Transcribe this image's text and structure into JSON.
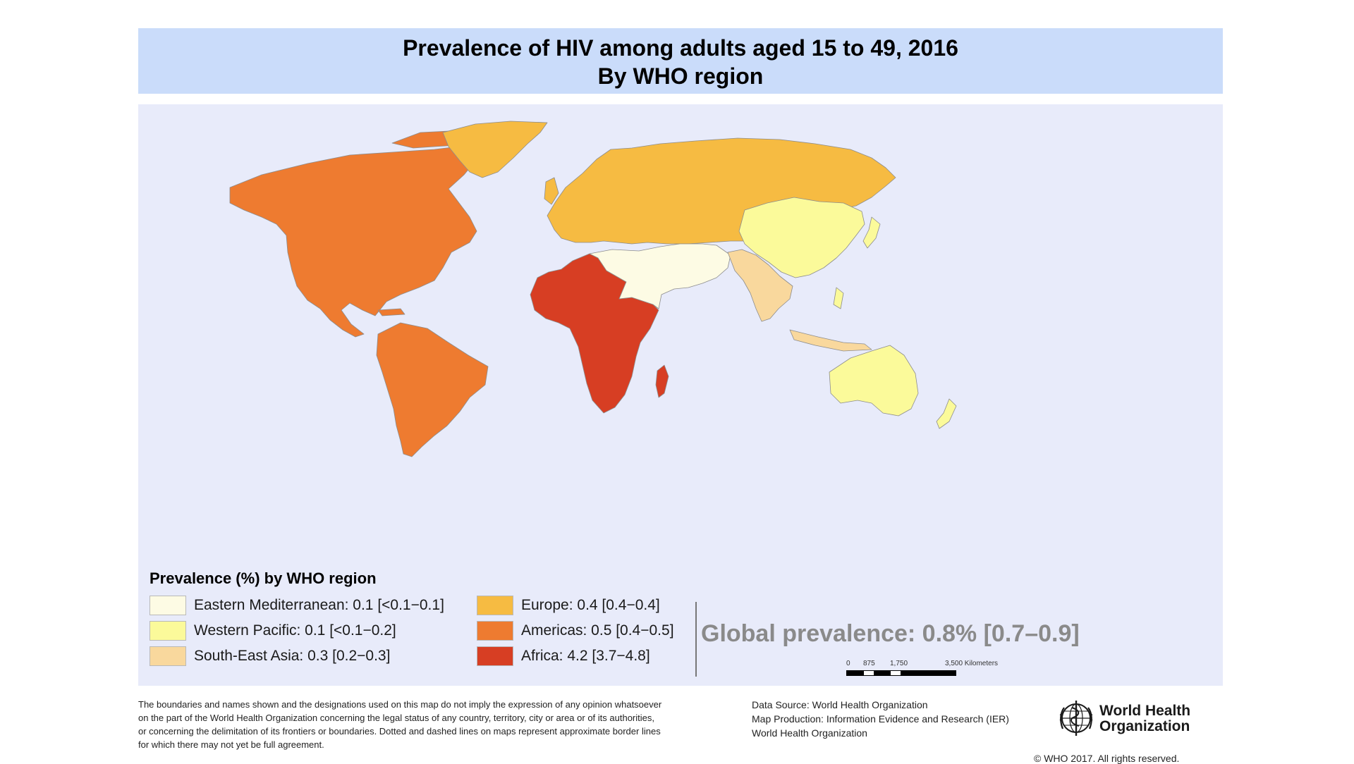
{
  "title": {
    "line1": "Prevalence of HIV among adults aged 15 to 49, 2016",
    "line2": "By WHO region"
  },
  "legend": {
    "title": "Prevalence (%) by WHO region",
    "items": [
      {
        "label": "Eastern Mediterranean: 0.1 [<0.1−0.1]",
        "color": "#fdfbe4"
      },
      {
        "label": "Western Pacific: 0.1 [<0.1−0.2]",
        "color": "#fbfa9a"
      },
      {
        "label": "South-East Asia: 0.3 [0.2−0.3]",
        "color": "#f9d89d"
      },
      {
        "label": "Europe: 0.4 [0.4−0.4]",
        "color": "#f6bb42"
      },
      {
        "label": "Americas: 0.5 [0.4−0.5]",
        "color": "#ee7b30"
      },
      {
        "label": "Africa: 4.2 [3.7−4.8]",
        "color": "#d73e23"
      }
    ]
  },
  "global_prevalence": "Global prevalence: 0.8% [0.7–0.9]",
  "scale": {
    "labels": [
      "0",
      "875",
      "1,750",
      "3,500 Kilometers"
    ]
  },
  "footer": {
    "disclaimer": [
      "The boundaries and names shown and the designations used on this map do not imply the expression of any opinion whatsoever",
      "on the part of the World Health Organization concerning the legal status of any country, territory, city or area or of its authorities,",
      "or concerning the delimitation of its frontiers or boundaries. Dotted and dashed lines on maps represent approximate border lines",
      "for which there may not yet be full agreement."
    ],
    "source": [
      "Data Source: World Health Organization",
      "Map Production: Information Evidence and Research (IER)",
      "World Health Organization"
    ],
    "org_name_line1": "World Health",
    "org_name_line2": "Organization",
    "copyright": "© WHO 2017. All rights reserved."
  },
  "colors": {
    "title_band": "#cadcfa",
    "ocean": "#e8ebfa",
    "eastern_mediterranean": "#fdfbe4",
    "western_pacific": "#fbfa9a",
    "south_east_asia": "#f9d89d",
    "europe": "#f6bb42",
    "americas": "#ee7b30",
    "africa": "#d73e23"
  }
}
